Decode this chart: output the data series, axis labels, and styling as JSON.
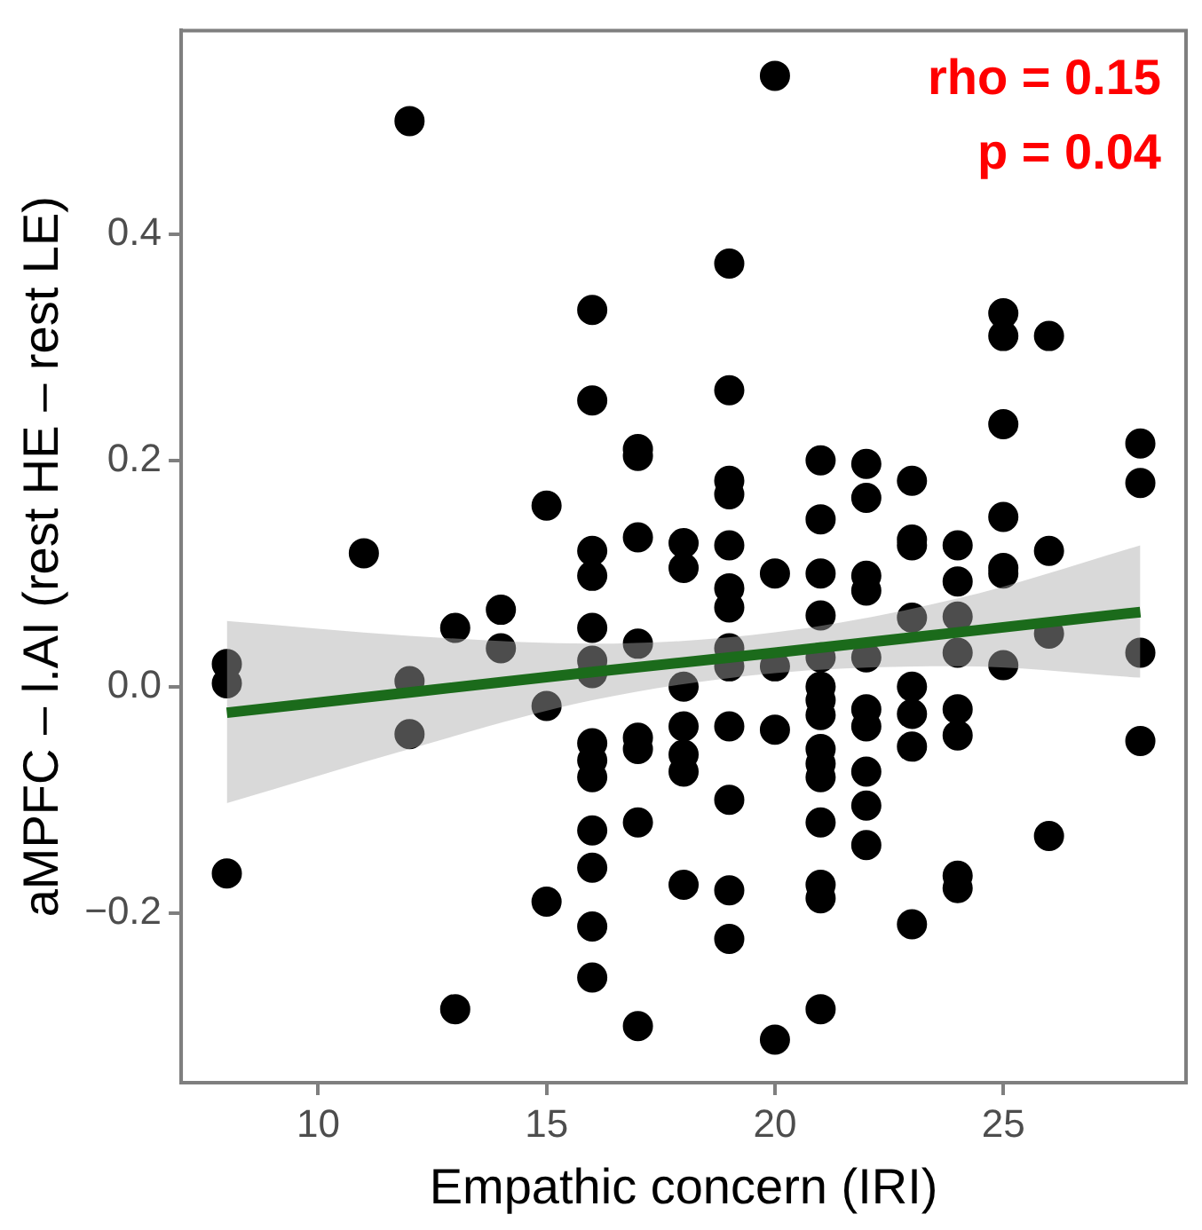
{
  "chart_data": {
    "type": "scatter",
    "xlabel": "Empathic concern (IRI)",
    "ylabel": "aMPFC – l.AI (rest HE – rest LE)",
    "annotations": [
      "rho = 0.15",
      "p = 0.04"
    ],
    "xlim": [
      7,
      29
    ],
    "xticks": [
      10,
      15,
      20,
      25
    ],
    "ylim": [
      -0.35,
      0.58
    ],
    "yticks": [
      {
        "value": -0.2,
        "label": "−0.2"
      },
      {
        "value": 0,
        "label": "0.0"
      },
      0.2,
      0.4
    ],
    "grid": false,
    "legend": false,
    "series": [
      {
        "type": "scatter",
        "color": "#000000",
        "marker": "circle",
        "x": [
          8,
          8,
          8,
          11,
          12,
          12,
          12,
          13,
          13,
          14,
          14,
          15,
          15,
          15,
          16,
          16,
          16,
          16,
          16,
          16,
          16,
          16,
          16,
          16,
          16,
          16,
          16,
          16,
          17,
          17,
          17,
          17,
          17,
          17,
          17,
          17,
          18,
          18,
          18,
          18,
          18,
          18,
          18,
          19,
          19,
          19,
          19,
          19,
          19,
          19,
          19,
          19,
          19,
          19,
          19,
          19,
          20,
          20,
          20,
          20,
          20,
          21,
          21,
          21,
          21,
          21,
          21,
          21,
          21,
          21,
          21,
          21,
          21,
          21,
          21,
          21,
          22,
          22,
          22,
          22,
          22,
          22,
          22,
          22,
          22,
          22,
          23,
          23,
          23,
          23,
          23,
          23,
          23,
          23,
          24,
          24,
          24,
          24,
          24,
          24,
          24,
          24,
          25,
          25,
          25,
          25,
          25,
          25,
          25,
          26,
          26,
          26,
          26,
          28,
          28,
          28,
          28
        ],
        "values": [
          0.02,
          0.003,
          -0.165,
          0.118,
          0.5,
          0.005,
          -0.042,
          0.052,
          -0.285,
          0.068,
          0.034,
          0.16,
          -0.017,
          -0.19,
          0.333,
          0.253,
          0.12,
          0.098,
          0.052,
          0.023,
          0.012,
          -0.05,
          -0.065,
          -0.08,
          -0.127,
          -0.16,
          -0.212,
          -0.257,
          0.21,
          0.204,
          0.132,
          0.038,
          -0.045,
          -0.055,
          -0.12,
          -0.3,
          0.127,
          0.105,
          0.0,
          -0.035,
          -0.06,
          -0.075,
          -0.175,
          0.374,
          0.262,
          0.182,
          0.17,
          0.125,
          0.087,
          0.07,
          0.034,
          0.018,
          -0.035,
          -0.1,
          -0.18,
          -0.223,
          0.54,
          0.1,
          0.018,
          -0.038,
          -0.312,
          0.2,
          0.148,
          0.1,
          0.063,
          0.026,
          0.0,
          -0.012,
          -0.025,
          -0.055,
          -0.068,
          -0.08,
          -0.12,
          -0.175,
          -0.187,
          -0.285,
          0.197,
          0.167,
          0.098,
          0.085,
          0.026,
          -0.02,
          -0.035,
          -0.075,
          -0.105,
          -0.14,
          0.182,
          0.13,
          0.125,
          0.061,
          0.0,
          -0.024,
          -0.053,
          -0.21,
          0.125,
          0.093,
          0.062,
          0.03,
          -0.02,
          -0.043,
          -0.167,
          -0.178,
          0.33,
          0.31,
          0.232,
          0.15,
          0.105,
          0.1,
          0.019,
          0.31,
          0.12,
          0.047,
          -0.132,
          0.215,
          0.18,
          0.03,
          -0.048
        ]
      },
      {
        "type": "line",
        "color": "#1b6b1b",
        "marker": "none",
        "line_style": "solid",
        "x": [
          8,
          12,
          16,
          20,
          24,
          28
        ],
        "values": [
          -0.023,
          -0.005,
          0.013,
          0.03,
          0.048,
          0.066
        ],
        "lower": [
          -0.103,
          -0.055,
          -0.012,
          0.012,
          0.018,
          0.008
        ],
        "upper": [
          0.058,
          0.045,
          0.038,
          0.048,
          0.078,
          0.125
        ]
      }
    ]
  }
}
